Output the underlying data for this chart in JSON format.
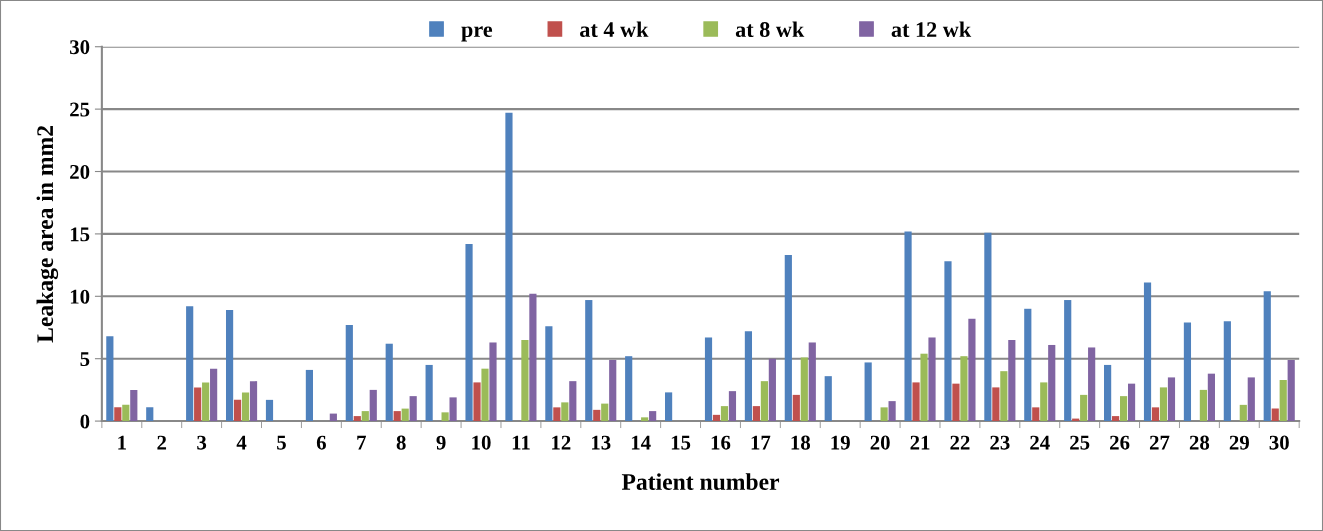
{
  "chart_data": {
    "type": "bar",
    "xlabel": "Patient number",
    "ylabel": "Leakage area in mm2",
    "categories": [
      "1",
      "2",
      "3",
      "4",
      "5",
      "6",
      "7",
      "8",
      "9",
      "10",
      "11",
      "12",
      "13",
      "14",
      "15",
      "16",
      "17",
      "18",
      "19",
      "20",
      "21",
      "22",
      "23",
      "24",
      "25",
      "26",
      "27",
      "28",
      "29",
      "30"
    ],
    "series": [
      {
        "name": "pre",
        "color": "#4f81bd",
        "values": [
          6.8,
          1.1,
          9.2,
          8.9,
          1.7,
          4.1,
          7.7,
          6.2,
          4.5,
          14.2,
          24.7,
          7.6,
          9.7,
          5.2,
          2.3,
          6.7,
          7.2,
          13.3,
          3.6,
          4.7,
          15.2,
          12.8,
          15.1,
          9.0,
          9.7,
          4.5,
          11.1,
          7.9,
          8.0,
          10.4
        ]
      },
      {
        "name": "at 4 wk",
        "color": "#c0504d",
        "values": [
          1.1,
          0,
          2.7,
          1.7,
          0,
          0,
          0.4,
          0.8,
          0,
          3.1,
          0,
          1.1,
          0.9,
          0,
          0,
          0.5,
          1.2,
          2.1,
          0,
          0,
          3.1,
          3.0,
          2.7,
          1.1,
          0.2,
          0.4,
          1.1,
          0,
          0,
          1.0
        ]
      },
      {
        "name": "at 8 wk",
        "color": "#9bbb59",
        "values": [
          1.3,
          0,
          3.1,
          2.3,
          0,
          0,
          0.8,
          1.0,
          0.7,
          4.2,
          6.5,
          1.5,
          1.4,
          0.3,
          0,
          1.2,
          3.2,
          5.1,
          0,
          1.1,
          5.4,
          5.2,
          4.0,
          3.1,
          2.1,
          2.0,
          2.7,
          2.5,
          1.3,
          3.3
        ]
      },
      {
        "name": "at 12 wk",
        "color": "#8064a2",
        "values": [
          2.5,
          0,
          4.2,
          3.2,
          0,
          0.6,
          2.5,
          2.0,
          1.9,
          6.3,
          10.2,
          3.2,
          4.9,
          0.8,
          0,
          2.4,
          5.0,
          6.3,
          0,
          1.6,
          6.7,
          8.2,
          6.5,
          6.1,
          5.9,
          3.0,
          3.5,
          3.8,
          3.5,
          4.9
        ]
      }
    ],
    "ylim": [
      0,
      30
    ],
    "yticks": [
      0,
      5,
      10,
      15,
      20,
      25,
      30
    ],
    "grid": "y",
    "legend": "top"
  }
}
